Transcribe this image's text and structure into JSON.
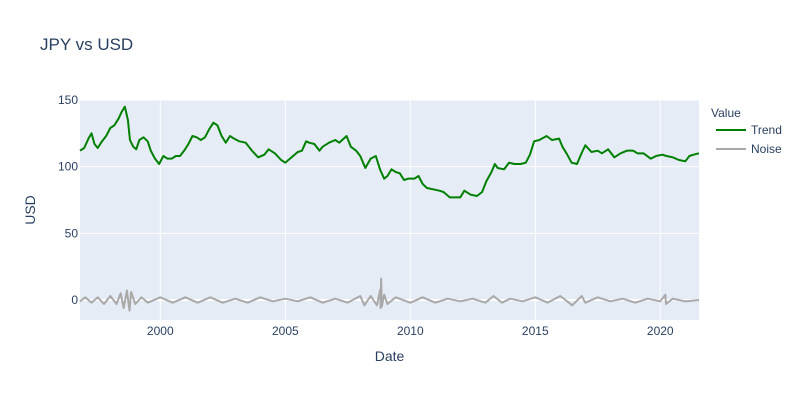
{
  "chart_data": {
    "type": "line",
    "title": "JPY vs USD",
    "xlabel": "Date",
    "ylabel": "USD",
    "xlim": [
      "1996-10-15",
      "2021-07-20"
    ],
    "ylim": [
      -15,
      150
    ],
    "x_ticks": [
      "2000",
      "2005",
      "2010",
      "2015",
      "2020"
    ],
    "y_ticks": [
      0,
      50,
      100,
      150
    ],
    "grid": true,
    "legend": {
      "title": "Value",
      "position": "right"
    },
    "series": [
      {
        "name": "Trend",
        "color": "#008000",
        "points": [
          [
            "1996-10-15",
            112
          ],
          [
            "1996-12-15",
            114
          ],
          [
            "1997-02-15",
            121
          ],
          [
            "1997-04-01",
            125
          ],
          [
            "1997-05-15",
            117
          ],
          [
            "1997-07-01",
            114
          ],
          [
            "1997-09-01",
            119
          ],
          [
            "1997-11-01",
            123
          ],
          [
            "1998-01-01",
            129
          ],
          [
            "1998-03-01",
            131
          ],
          [
            "1998-05-01",
            136
          ],
          [
            "1998-06-15",
            141
          ],
          [
            "1998-08-01",
            145
          ],
          [
            "1998-09-15",
            135
          ],
          [
            "1998-10-15",
            120
          ],
          [
            "1998-12-01",
            115
          ],
          [
            "1999-01-15",
            113
          ],
          [
            "1999-03-01",
            120
          ],
          [
            "1999-05-01",
            122
          ],
          [
            "1999-07-01",
            119
          ],
          [
            "1999-08-15",
            112
          ],
          [
            "1999-10-15",
            106
          ],
          [
            "1999-12-15",
            102
          ],
          [
            "2000-02-15",
            108
          ],
          [
            "2000-04-15",
            106
          ],
          [
            "2000-06-15",
            106
          ],
          [
            "2000-08-15",
            108
          ],
          [
            "2000-10-15",
            108
          ],
          [
            "2000-12-15",
            112
          ],
          [
            "2001-02-15",
            117
          ],
          [
            "2001-04-15",
            123
          ],
          [
            "2001-06-15",
            122
          ],
          [
            "2001-08-15",
            120
          ],
          [
            "2001-10-15",
            122
          ],
          [
            "2001-12-15",
            128
          ],
          [
            "2002-02-15",
            133
          ],
          [
            "2002-04-15",
            131
          ],
          [
            "2002-06-15",
            123
          ],
          [
            "2002-08-15",
            118
          ],
          [
            "2002-10-15",
            123
          ],
          [
            "2002-12-15",
            121
          ],
          [
            "2003-03-01",
            119
          ],
          [
            "2003-06-01",
            118
          ],
          [
            "2003-09-01",
            112
          ],
          [
            "2003-12-01",
            107
          ],
          [
            "2004-03-01",
            109
          ],
          [
            "2004-05-01",
            113
          ],
          [
            "2004-08-01",
            110
          ],
          [
            "2004-11-01",
            105
          ],
          [
            "2005-01-01",
            103
          ],
          [
            "2005-04-01",
            107
          ],
          [
            "2005-07-01",
            111
          ],
          [
            "2005-09-01",
            112
          ],
          [
            "2005-11-01",
            119
          ],
          [
            "2005-12-15",
            118
          ],
          [
            "2006-03-01",
            117
          ],
          [
            "2006-05-15",
            112
          ],
          [
            "2006-07-01",
            115
          ],
          [
            "2006-10-01",
            118
          ],
          [
            "2007-01-01",
            120
          ],
          [
            "2007-03-01",
            118
          ],
          [
            "2007-06-15",
            123
          ],
          [
            "2007-08-15",
            115
          ],
          [
            "2007-11-01",
            112
          ],
          [
            "2008-01-01",
            108
          ],
          [
            "2008-03-15",
            99
          ],
          [
            "2008-06-01",
            106
          ],
          [
            "2008-08-15",
            108
          ],
          [
            "2008-10-15",
            98
          ],
          [
            "2008-12-15",
            91
          ],
          [
            "2009-02-01",
            93
          ],
          [
            "2009-04-01",
            98
          ],
          [
            "2009-06-01",
            96
          ],
          [
            "2009-08-01",
            95
          ],
          [
            "2009-10-01",
            90
          ],
          [
            "2009-12-01",
            91
          ],
          [
            "2010-03-01",
            91
          ],
          [
            "2010-05-01",
            93
          ],
          [
            "2010-07-01",
            87
          ],
          [
            "2010-09-01",
            84
          ],
          [
            "2010-12-01",
            83
          ],
          [
            "2011-03-01",
            82
          ],
          [
            "2011-05-01",
            81
          ],
          [
            "2011-08-01",
            77
          ],
          [
            "2011-10-15",
            77
          ],
          [
            "2012-01-01",
            77
          ],
          [
            "2012-03-01",
            82
          ],
          [
            "2012-06-01",
            79
          ],
          [
            "2012-09-01",
            78
          ],
          [
            "2012-11-15",
            81
          ],
          [
            "2013-01-15",
            89
          ],
          [
            "2013-04-01",
            96
          ],
          [
            "2013-05-20",
            102
          ],
          [
            "2013-07-01",
            99
          ],
          [
            "2013-10-01",
            98
          ],
          [
            "2013-12-15",
            103
          ],
          [
            "2014-03-01",
            102
          ],
          [
            "2014-06-01",
            102
          ],
          [
            "2014-08-15",
            103
          ],
          [
            "2014-10-15",
            109
          ],
          [
            "2014-12-15",
            119
          ],
          [
            "2015-03-01",
            120
          ],
          [
            "2015-06-15",
            123
          ],
          [
            "2015-09-01",
            120
          ],
          [
            "2015-12-15",
            121
          ],
          [
            "2016-02-01",
            115
          ],
          [
            "2016-04-01",
            110
          ],
          [
            "2016-06-15",
            103
          ],
          [
            "2016-09-01",
            102
          ],
          [
            "2016-11-15",
            111
          ],
          [
            "2017-01-01",
            116
          ],
          [
            "2017-04-01",
            111
          ],
          [
            "2017-07-01",
            112
          ],
          [
            "2017-09-01",
            110
          ],
          [
            "2017-12-01",
            113
          ],
          [
            "2018-03-01",
            107
          ],
          [
            "2018-06-01",
            110
          ],
          [
            "2018-09-01",
            112
          ],
          [
            "2018-12-01",
            112
          ],
          [
            "2019-02-01",
            110
          ],
          [
            "2019-05-01",
            110
          ],
          [
            "2019-08-15",
            106
          ],
          [
            "2019-11-01",
            108
          ],
          [
            "2020-02-01",
            109
          ],
          [
            "2020-04-01",
            108
          ],
          [
            "2020-07-01",
            107
          ],
          [
            "2020-10-01",
            105
          ],
          [
            "2021-01-01",
            104
          ],
          [
            "2021-03-01",
            108
          ],
          [
            "2021-05-01",
            109
          ],
          [
            "2021-07-20",
            110
          ]
        ]
      },
      {
        "name": "Noise",
        "color": "#a9a9a9",
        "points": [
          [
            "1996-10-15",
            -1
          ],
          [
            "1997-01-01",
            2
          ],
          [
            "1997-04-01",
            -2
          ],
          [
            "1997-07-01",
            2
          ],
          [
            "1997-10-01",
            -3
          ],
          [
            "1998-01-01",
            3
          ],
          [
            "1998-04-01",
            -3
          ],
          [
            "1998-06-01",
            5
          ],
          [
            "1998-07-15",
            -6
          ],
          [
            "1998-09-01",
            7
          ],
          [
            "1998-10-08",
            -8
          ],
          [
            "1998-11-01",
            6
          ],
          [
            "1999-01-01",
            -3
          ],
          [
            "1999-04-01",
            2
          ],
          [
            "1999-07-01",
            -2
          ],
          [
            "2000-01-01",
            2
          ],
          [
            "2000-07-01",
            -2
          ],
          [
            "2001-01-01",
            2
          ],
          [
            "2001-07-01",
            -2
          ],
          [
            "2002-01-01",
            2
          ],
          [
            "2002-07-01",
            -2
          ],
          [
            "2003-01-01",
            1
          ],
          [
            "2003-07-01",
            -2
          ],
          [
            "2004-01-01",
            2
          ],
          [
            "2004-07-01",
            -1
          ],
          [
            "2005-01-01",
            1
          ],
          [
            "2005-07-01",
            -1
          ],
          [
            "2006-01-01",
            2
          ],
          [
            "2006-07-01",
            -2
          ],
          [
            "2007-01-01",
            1
          ],
          [
            "2007-07-01",
            -2
          ],
          [
            "2008-01-01",
            3
          ],
          [
            "2008-03-01",
            -4
          ],
          [
            "2008-06-01",
            3
          ],
          [
            "2008-09-01",
            -4
          ],
          [
            "2008-10-20",
            8
          ],
          [
            "2008-10-24",
            -6
          ],
          [
            "2008-11-01",
            16
          ],
          [
            "2008-11-10",
            -5
          ],
          [
            "2008-12-15",
            4
          ],
          [
            "2009-02-01",
            -3
          ],
          [
            "2009-06-01",
            2
          ],
          [
            "2010-01-01",
            -2
          ],
          [
            "2010-07-01",
            2
          ],
          [
            "2011-01-01",
            -2
          ],
          [
            "2011-07-01",
            1
          ],
          [
            "2012-01-01",
            -1
          ],
          [
            "2012-07-01",
            1
          ],
          [
            "2013-01-01",
            -2
          ],
          [
            "2013-05-01",
            3
          ],
          [
            "2013-09-01",
            -2
          ],
          [
            "2014-01-01",
            1
          ],
          [
            "2014-07-01",
            -1
          ],
          [
            "2015-01-01",
            2
          ],
          [
            "2015-07-01",
            -2
          ],
          [
            "2016-01-01",
            3
          ],
          [
            "2016-06-24",
            -4
          ],
          [
            "2016-11-09",
            3
          ],
          [
            "2017-01-01",
            -2
          ],
          [
            "2017-07-01",
            2
          ],
          [
            "2018-01-01",
            -1
          ],
          [
            "2018-07-01",
            1
          ],
          [
            "2019-01-01",
            -2
          ],
          [
            "2019-07-01",
            1
          ],
          [
            "2020-01-01",
            -1
          ],
          [
            "2020-03-15",
            4
          ],
          [
            "2020-03-25",
            -3
          ],
          [
            "2020-07-01",
            1
          ],
          [
            "2021-01-01",
            -1
          ],
          [
            "2021-07-20",
            0
          ]
        ]
      }
    ]
  }
}
